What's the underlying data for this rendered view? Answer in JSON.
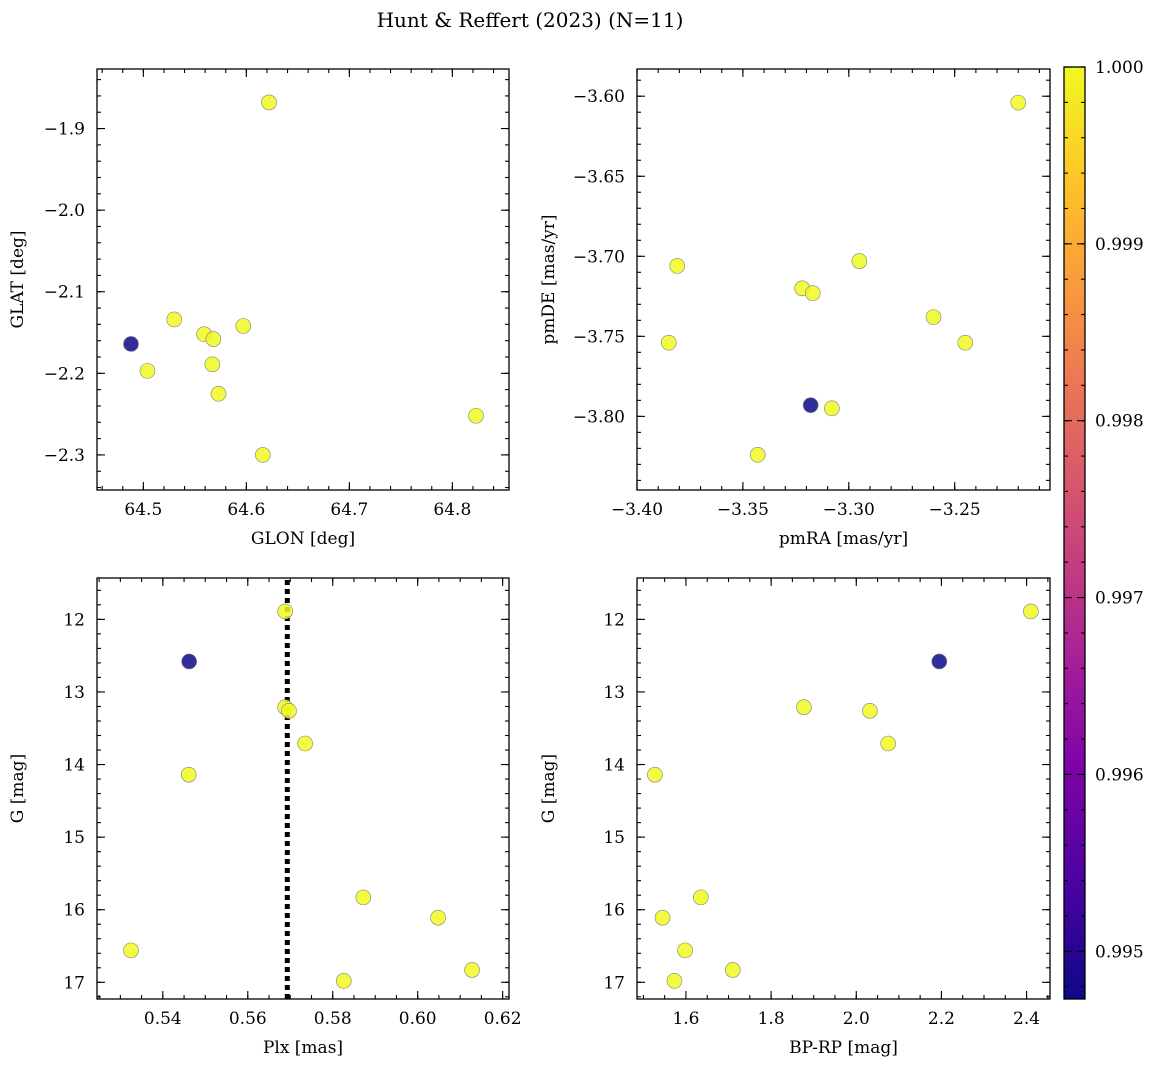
{
  "figure": {
    "title": "Hunt & Reffert (2023) (N=11)"
  },
  "colorbar": {
    "colormap": "plasma",
    "range": [
      0.99473,
      1.0
    ],
    "ticks": [
      0.995,
      0.996,
      0.997,
      0.998,
      0.999,
      1.0
    ],
    "tick_labels": [
      "0.995",
      "0.996",
      "0.997",
      "0.998",
      "0.999",
      "1.000"
    ]
  },
  "chart_data": [
    {
      "type": "scatter",
      "id": "glon-glat",
      "xlabel": "GLON [deg]",
      "ylabel": "GLAT [deg]",
      "xlim": [
        64.455,
        64.855
      ],
      "ylim": [
        -2.343,
        -1.827
      ],
      "y_inverted": false,
      "xticks": [
        64.5,
        64.6,
        64.7,
        64.8
      ],
      "xtick_labels": [
        "64.5",
        "64.6",
        "64.7",
        "64.8"
      ],
      "yticks": [
        -1.9,
        -2.0,
        -2.1,
        -2.2,
        -2.3
      ],
      "ytick_labels": [
        "−1.9",
        "−2.0",
        "−2.1",
        "−2.2",
        "−2.3"
      ],
      "grid": false,
      "points": [
        {
          "x": 64.622,
          "y": -1.868,
          "c": 1.0
        },
        {
          "x": 64.488,
          "y": -2.164,
          "c": 0.99473
        },
        {
          "x": 64.504,
          "y": -2.197,
          "c": 1.0
        },
        {
          "x": 64.53,
          "y": -2.134,
          "c": 1.0
        },
        {
          "x": 64.559,
          "y": -2.152,
          "c": 1.0
        },
        {
          "x": 64.568,
          "y": -2.158,
          "c": 1.0
        },
        {
          "x": 64.567,
          "y": -2.189,
          "c": 1.0
        },
        {
          "x": 64.573,
          "y": -2.225,
          "c": 1.0
        },
        {
          "x": 64.597,
          "y": -2.142,
          "c": 1.0
        },
        {
          "x": 64.616,
          "y": -2.3,
          "c": 1.0
        },
        {
          "x": 64.823,
          "y": -2.252,
          "c": 1.0
        }
      ]
    },
    {
      "type": "scatter",
      "id": "pmra-pmde",
      "xlabel": "pmRA [mas/yr]",
      "ylabel": "pmDE [mas/yr]",
      "xlim": [
        -3.4,
        -3.205
      ],
      "ylim": [
        -3.846,
        -3.583
      ],
      "y_inverted": false,
      "xticks": [
        -3.4,
        -3.35,
        -3.3,
        -3.25
      ],
      "xtick_labels": [
        "−3.40",
        "−3.35",
        "−3.30",
        "−3.25"
      ],
      "yticks": [
        -3.6,
        -3.65,
        -3.7,
        -3.75,
        -3.8
      ],
      "ytick_labels": [
        "−3.60",
        "−3.65",
        "−3.70",
        "−3.75",
        "−3.80"
      ],
      "grid": false,
      "points": [
        {
          "x": -3.22,
          "y": -3.604,
          "c": 1.0
        },
        {
          "x": -3.381,
          "y": -3.706,
          "c": 1.0
        },
        {
          "x": -3.385,
          "y": -3.754,
          "c": 1.0
        },
        {
          "x": -3.322,
          "y": -3.72,
          "c": 1.0
        },
        {
          "x": -3.317,
          "y": -3.723,
          "c": 1.0
        },
        {
          "x": -3.295,
          "y": -3.703,
          "c": 1.0
        },
        {
          "x": -3.26,
          "y": -3.738,
          "c": 1.0
        },
        {
          "x": -3.245,
          "y": -3.754,
          "c": 1.0
        },
        {
          "x": -3.318,
          "y": -3.793,
          "c": 0.99473
        },
        {
          "x": -3.308,
          "y": -3.795,
          "c": 1.0
        },
        {
          "x": -3.343,
          "y": -3.824,
          "c": 1.0
        }
      ]
    },
    {
      "type": "scatter",
      "id": "plx-g",
      "xlabel": "Plx [mas]",
      "ylabel": "G [mag]",
      "xlim": [
        0.5245,
        0.6215
      ],
      "ylim": [
        11.43,
        17.23
      ],
      "y_inverted": true,
      "xticks": [
        0.54,
        0.56,
        0.58,
        0.6,
        0.62
      ],
      "xtick_labels": [
        "0.54",
        "0.56",
        "0.58",
        "0.60",
        "0.62"
      ],
      "yticks": [
        12,
        13,
        14,
        15,
        16,
        17
      ],
      "ytick_labels": [
        "12",
        "13",
        "14",
        "15",
        "16",
        "17"
      ],
      "grid": false,
      "reference_line": {
        "orientation": "vertical",
        "x": 0.5693,
        "style": "dotted"
      },
      "points": [
        {
          "x": 0.5688,
          "y": 11.89,
          "c": 1.0
        },
        {
          "x": 0.5462,
          "y": 12.58,
          "c": 0.99473
        },
        {
          "x": 0.5688,
          "y": 13.21,
          "c": 1.0
        },
        {
          "x": 0.5697,
          "y": 13.26,
          "c": 1.0
        },
        {
          "x": 0.5735,
          "y": 13.71,
          "c": 1.0
        },
        {
          "x": 0.5461,
          "y": 14.14,
          "c": 1.0
        },
        {
          "x": 0.5872,
          "y": 15.83,
          "c": 1.0
        },
        {
          "x": 0.6048,
          "y": 16.11,
          "c": 1.0
        },
        {
          "x": 0.5325,
          "y": 16.56,
          "c": 1.0
        },
        {
          "x": 0.6128,
          "y": 16.83,
          "c": 1.0
        },
        {
          "x": 0.5826,
          "y": 16.98,
          "c": 1.0
        }
      ]
    },
    {
      "type": "scatter",
      "id": "bprp-g",
      "xlabel": "BP-RP [mag]",
      "ylabel": "G [mag]",
      "xlim": [
        1.485,
        2.455
      ],
      "ylim": [
        11.43,
        17.23
      ],
      "y_inverted": true,
      "xticks": [
        1.6,
        1.8,
        2.0,
        2.2,
        2.4
      ],
      "xtick_labels": [
        "1.6",
        "1.8",
        "2.0",
        "2.2",
        "2.4"
      ],
      "yticks": [
        12,
        13,
        14,
        15,
        16,
        17
      ],
      "ytick_labels": [
        "12",
        "13",
        "14",
        "15",
        "16",
        "17"
      ],
      "grid": false,
      "points": [
        {
          "x": 2.41,
          "y": 11.89,
          "c": 1.0
        },
        {
          "x": 2.195,
          "y": 12.58,
          "c": 0.99473
        },
        {
          "x": 1.877,
          "y": 13.21,
          "c": 1.0
        },
        {
          "x": 2.032,
          "y": 13.26,
          "c": 1.0
        },
        {
          "x": 2.075,
          "y": 13.71,
          "c": 1.0
        },
        {
          "x": 1.527,
          "y": 14.14,
          "c": 1.0
        },
        {
          "x": 1.635,
          "y": 15.83,
          "c": 1.0
        },
        {
          "x": 1.545,
          "y": 16.11,
          "c": 1.0
        },
        {
          "x": 1.598,
          "y": 16.56,
          "c": 1.0
        },
        {
          "x": 1.71,
          "y": 16.83,
          "c": 1.0
        },
        {
          "x": 1.573,
          "y": 16.98,
          "c": 1.0
        }
      ]
    }
  ]
}
